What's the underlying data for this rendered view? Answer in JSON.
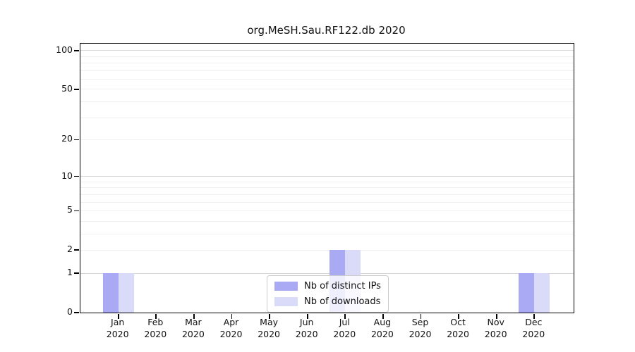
{
  "window": {
    "background": "#ffffff"
  },
  "chart_data": {
    "type": "bar",
    "title": "org.MeSH.Sau.RF122.db 2020",
    "year_label": "2020",
    "categories": [
      "Jan 2020",
      "Feb 2020",
      "Mar 2020",
      "Apr 2020",
      "May 2020",
      "Jun 2020",
      "Jul 2020",
      "Aug 2020",
      "Sep 2020",
      "Oct 2020",
      "Nov 2020",
      "Dec 2020"
    ],
    "months": [
      "Jan",
      "Feb",
      "Mar",
      "Apr",
      "May",
      "Jun",
      "Jul",
      "Aug",
      "Sep",
      "Oct",
      "Nov",
      "Dec"
    ],
    "series": [
      {
        "name": "Nb of distinct IPs",
        "color": "#a9a9f4",
        "values": [
          1,
          0,
          0,
          0,
          0,
          0,
          2,
          0,
          0,
          0,
          0,
          1
        ]
      },
      {
        "name": "Nb of downloads",
        "color": "#dadaf9",
        "values": [
          1,
          0,
          0,
          0,
          0,
          0,
          2,
          0,
          0,
          0,
          0,
          1
        ]
      }
    ],
    "yticks": [
      0,
      1,
      2,
      5,
      10,
      20,
      50,
      100
    ],
    "major_gridlines": [
      1,
      10,
      100
    ],
    "minor_gridlines": [
      2,
      3,
      4,
      5,
      6,
      7,
      8,
      9,
      20,
      30,
      40,
      50,
      60,
      70,
      80,
      90
    ],
    "scale": "log1p",
    "ylim": [
      0,
      113
    ],
    "xlabel": "",
    "ylabel": "",
    "grid": "horizontal",
    "legend_position": "lower center"
  },
  "colors": {
    "axis": "#000000",
    "major_grid": "#d6d6d6",
    "minor_grid": "#f0f0f0",
    "legend_border": "#cccccc",
    "distinct_ips_bar": "#a9a9f4",
    "downloads_bar": "#dadaf9"
  }
}
